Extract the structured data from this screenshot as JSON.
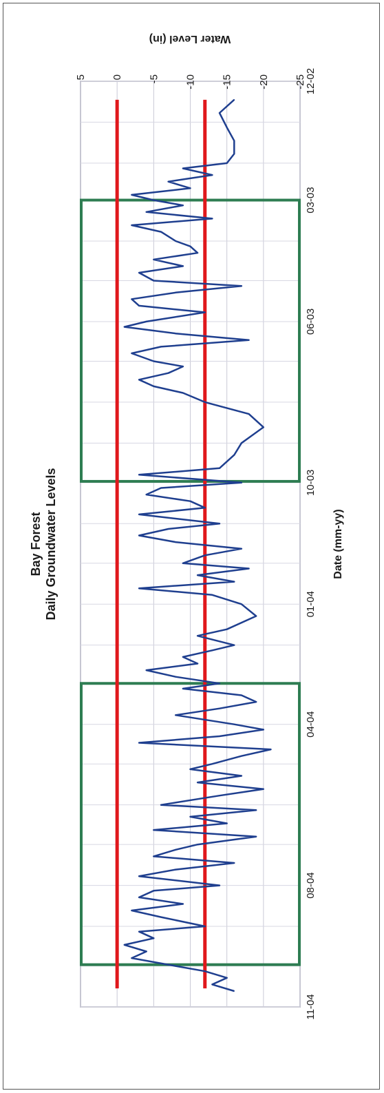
{
  "chart_data": {
    "type": "line",
    "title": "Bay Forest",
    "subtitle": "Daily Groundwater Levels",
    "xlabel": "Date (mm-yy)",
    "ylabel": "Water Level (in)",
    "ylim": [
      -25,
      5
    ],
    "yticks": [
      "5",
      "0",
      "-5",
      "-10",
      "-15",
      "-20",
      "-25"
    ],
    "xlim": [
      "2002-12-01",
      "2004-11-01"
    ],
    "xticks": [
      "12-02",
      "03-03",
      "06-03",
      "10-03",
      "01-04",
      "04-04",
      "08-04",
      "11-04"
    ],
    "grid": true,
    "series": [
      {
        "name": "",
        "color": "#1f3f8f",
        "x": [
          "2002-12-15",
          "2002-12-25",
          "2003-01-05",
          "2003-01-15",
          "2003-01-25",
          "2003-02-01",
          "2003-02-05",
          "2003-02-10",
          "2003-02-15",
          "2003-02-20",
          "2003-02-25",
          "2003-03-01",
          "2003-03-05",
          "2003-03-10",
          "2003-03-15",
          "2003-03-20",
          "2003-03-25",
          "2003-04-01",
          "2003-04-05",
          "2003-04-10",
          "2003-04-15",
          "2003-04-20",
          "2003-04-25",
          "2003-05-01",
          "2003-05-05",
          "2003-05-10",
          "2003-05-15",
          "2003-05-20",
          "2003-05-25",
          "2003-06-01",
          "2003-06-05",
          "2003-06-10",
          "2003-06-15",
          "2003-06-20",
          "2003-06-25",
          "2003-07-01",
          "2003-07-05",
          "2003-07-10",
          "2003-07-15",
          "2003-07-20",
          "2003-07-25",
          "2003-08-01",
          "2003-08-10",
          "2003-08-20",
          "2003-09-01",
          "2003-09-10",
          "2003-09-20",
          "2003-09-25",
          "2003-10-01",
          "2003-10-05",
          "2003-10-10",
          "2003-10-15",
          "2003-10-20",
          "2003-10-25",
          "2003-11-01",
          "2003-11-05",
          "2003-11-10",
          "2003-11-15",
          "2003-11-20",
          "2003-11-25",
          "2003-12-01",
          "2003-12-05",
          "2003-12-10",
          "2003-12-15",
          "2003-12-20",
          "2003-12-25",
          "2004-01-01",
          "2004-01-10",
          "2004-01-20",
          "2004-01-25",
          "2004-02-01",
          "2004-02-05",
          "2004-02-10",
          "2004-02-15",
          "2004-02-20",
          "2004-02-25",
          "2004-03-01",
          "2004-03-05",
          "2004-03-10",
          "2004-03-15",
          "2004-03-20",
          "2004-03-25",
          "2004-04-01",
          "2004-04-05",
          "2004-04-10",
          "2004-04-15",
          "2004-04-20",
          "2004-04-25",
          "2004-05-01",
          "2004-05-05",
          "2004-05-10",
          "2004-05-15",
          "2004-05-20",
          "2004-05-25",
          "2004-06-01",
          "2004-06-05",
          "2004-06-10",
          "2004-06-15",
          "2004-06-20",
          "2004-06-25",
          "2004-07-01",
          "2004-07-05",
          "2004-07-10",
          "2004-07-15",
          "2004-07-20",
          "2004-07-25",
          "2004-08-01",
          "2004-08-05",
          "2004-08-10",
          "2004-08-15",
          "2004-08-20",
          "2004-08-25",
          "2004-09-01",
          "2004-09-05",
          "2004-09-10",
          "2004-09-15",
          "2004-09-20",
          "2004-09-25",
          "2004-10-01",
          "2004-10-05",
          "2004-10-10",
          "2004-10-15",
          "2004-10-20"
        ],
        "y": [
          -16,
          -14,
          -15,
          -16,
          -16,
          -15,
          -9,
          -13,
          -7,
          -10,
          -2,
          -5,
          -9,
          -4,
          -13,
          -2,
          -6,
          -8,
          -10,
          -11,
          -5,
          -9,
          -3,
          -5,
          -17,
          -8,
          -2,
          -3,
          -12,
          -4,
          -1,
          -8,
          -18,
          -6,
          -2,
          -5,
          -9,
          -7,
          -3,
          -5,
          -9,
          -12,
          -18,
          -20,
          -17,
          -16,
          -14,
          -3,
          -17,
          -6,
          -4,
          -10,
          -12,
          -3,
          -14,
          -7,
          -3,
          -8,
          -17,
          -12,
          -9,
          -18,
          -11,
          -16,
          -3,
          -13,
          -17,
          -19,
          -15,
          -11,
          -16,
          -13,
          -9,
          -11,
          -4,
          -8,
          -14,
          -9,
          -17,
          -19,
          -14,
          -8,
          -16,
          -20,
          -14,
          -3,
          -21,
          -17,
          -13,
          -10,
          -17,
          -11,
          -20,
          -14,
          -6,
          -19,
          -10,
          -15,
          -5,
          -19,
          -11,
          -8,
          -5,
          -16,
          -8,
          -3,
          -14,
          -5,
          -3,
          -9,
          -2,
          -6,
          -12,
          -3,
          -5,
          -1,
          -4,
          -2,
          -8,
          -12,
          -15,
          -13,
          -16
        ]
      }
    ],
    "reference_lines": [
      {
        "y": 0,
        "color": "#e0181c"
      },
      {
        "y": -12,
        "color": "#e0181c"
      }
    ],
    "highlight_boxes": [
      {
        "start": "2003-03-01",
        "end": "2003-09-30",
        "color": "#2e7d52"
      },
      {
        "start": "2004-03-01",
        "end": "2004-09-30",
        "color": "#2e7d52"
      }
    ]
  }
}
